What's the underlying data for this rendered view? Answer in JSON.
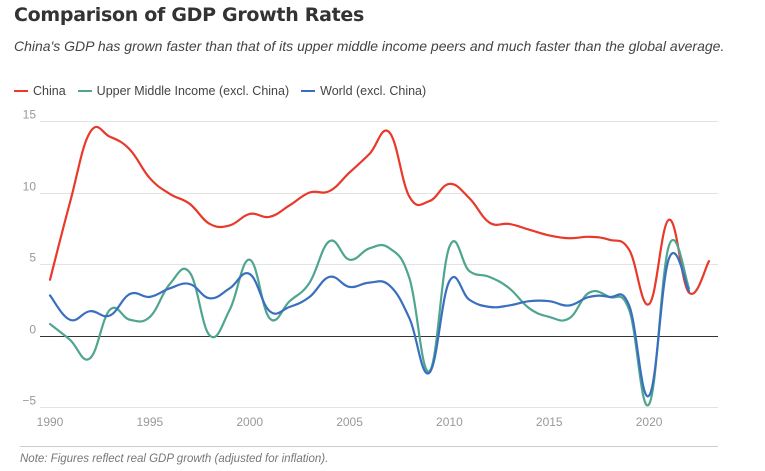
{
  "header": {
    "title": "Comparison of GDP Growth Rates",
    "subtitle": "China's GDP has grown faster than that of its upper middle income peers and much faster than the global average."
  },
  "legend": [
    {
      "label": "China",
      "color": "#e8392b"
    },
    {
      "label": "Upper Middle Income (excl. China)",
      "color": "#4fa58f"
    },
    {
      "label": "World (excl. China)",
      "color": "#3a6fbf"
    }
  ],
  "note": "Note: Figures reflect real GDP growth (adjusted for inflation).",
  "chart_data": {
    "type": "line",
    "title": "Comparison of GDP Growth Rates",
    "xlabel": "",
    "ylabel": "",
    "xlim": [
      1990,
      2023
    ],
    "ylim": [
      -5,
      15
    ],
    "grid": true,
    "legend_position": "top-left",
    "x_ticks": [
      1990,
      1995,
      2000,
      2005,
      2010,
      2015,
      2020
    ],
    "y_ticks": [
      -5,
      0,
      5,
      10,
      15
    ],
    "y_tick_labels": [
      "−5",
      "0",
      "5",
      "10",
      "15"
    ],
    "series": [
      {
        "name": "China",
        "color": "#e8392b",
        "x": [
          1990,
          1991,
          1992,
          1993,
          1994,
          1995,
          1996,
          1997,
          1998,
          1999,
          2000,
          2001,
          2002,
          2003,
          2004,
          2005,
          2006,
          2007,
          2008,
          2009,
          2010,
          2011,
          2012,
          2013,
          2014,
          2015,
          2016,
          2017,
          2018,
          2019,
          2020,
          2021,
          2022,
          2023
        ],
        "values": [
          3.9,
          9.3,
          14.2,
          13.9,
          13.0,
          11.0,
          9.9,
          9.2,
          7.8,
          7.7,
          8.5,
          8.3,
          9.1,
          10.0,
          10.1,
          11.4,
          12.7,
          14.2,
          9.7,
          9.4,
          10.6,
          9.6,
          7.9,
          7.8,
          7.4,
          7.0,
          6.8,
          6.9,
          6.7,
          6.0,
          2.2,
          8.1,
          3.0,
          5.2
        ]
      },
      {
        "name": "Upper Middle Income (excl. China)",
        "color": "#4fa58f",
        "x": [
          1990,
          1991,
          1992,
          1993,
          1994,
          1995,
          1996,
          1997,
          1998,
          1999,
          2000,
          2001,
          2002,
          2003,
          2004,
          2005,
          2006,
          2007,
          2008,
          2009,
          2010,
          2011,
          2012,
          2013,
          2014,
          2015,
          2016,
          2017,
          2018,
          2019,
          2020,
          2021,
          2022
        ],
        "values": [
          0.8,
          -0.3,
          -1.6,
          1.8,
          1.1,
          1.3,
          3.6,
          4.4,
          0.0,
          1.8,
          5.3,
          1.2,
          2.4,
          3.7,
          6.6,
          5.3,
          6.1,
          6.1,
          4.0,
          -2.5,
          6.2,
          4.5,
          4.1,
          3.3,
          1.9,
          1.3,
          1.2,
          3.0,
          2.7,
          1.8,
          -4.8,
          6.3,
          3.3
        ]
      },
      {
        "name": "World (excl. China)",
        "color": "#3a6fbf",
        "x": [
          1990,
          1991,
          1992,
          1993,
          1994,
          1995,
          1996,
          1997,
          1998,
          1999,
          2000,
          2001,
          2002,
          2003,
          2004,
          2005,
          2006,
          2007,
          2008,
          2009,
          2010,
          2011,
          2012,
          2013,
          2014,
          2015,
          2016,
          2017,
          2018,
          2019,
          2020,
          2021,
          2022
        ],
        "values": [
          2.8,
          1.1,
          1.7,
          1.4,
          2.9,
          2.7,
          3.3,
          3.6,
          2.6,
          3.3,
          4.3,
          1.7,
          2.0,
          2.7,
          4.1,
          3.4,
          3.7,
          3.5,
          1.2,
          -2.6,
          3.8,
          2.5,
          2.0,
          2.1,
          2.4,
          2.4,
          2.1,
          2.7,
          2.7,
          2.1,
          -4.2,
          5.4,
          3.1
        ]
      }
    ]
  }
}
